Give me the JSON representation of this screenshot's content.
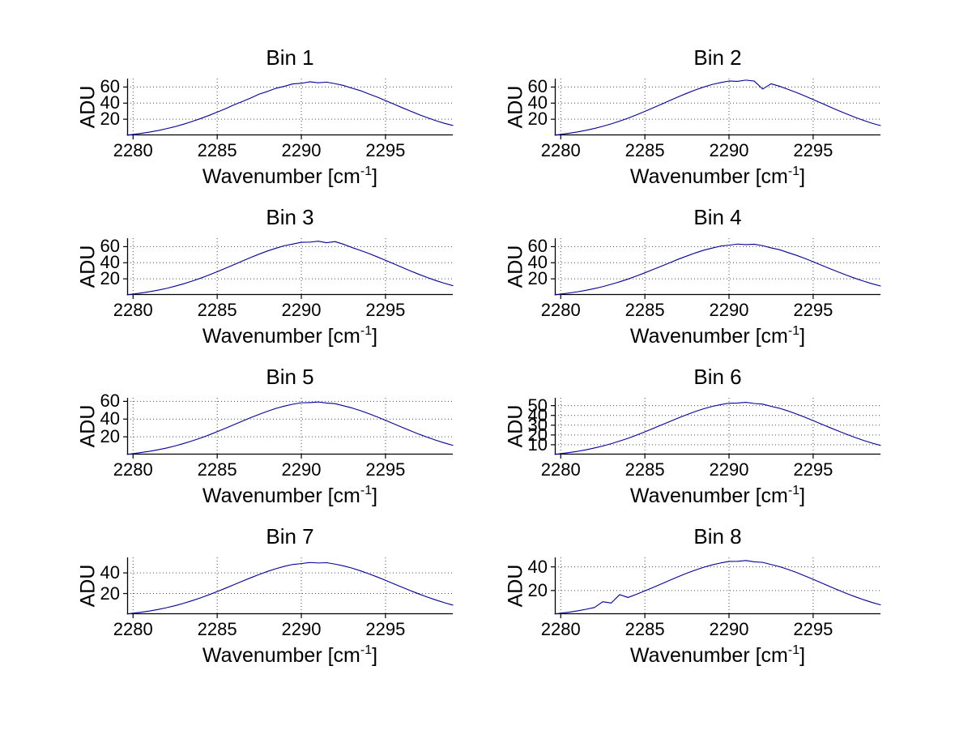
{
  "figure": {
    "background_color": "#ffffff",
    "line_color": "#000099",
    "grid_color": "#4d4d4d",
    "axis_color": "#000000",
    "text_color": "#000000"
  },
  "chart_data": {
    "type": "line",
    "layout": "4x2-subplots",
    "ylabel": "ADU",
    "xlabel": {
      "prefix": "Wavenumber [cm",
      "sup": "-1",
      "suffix": "]"
    },
    "grid": true,
    "xlim": [
      2279.65,
      2299
    ],
    "xticks": [
      2280,
      2285,
      2290,
      2295
    ],
    "x": [
      2279.65,
      2280,
      2280.5,
      2281,
      2281.5,
      2282,
      2282.5,
      2283,
      2283.5,
      2284,
      2284.5,
      2285,
      2285.5,
      2286,
      2286.5,
      2287,
      2287.5,
      2288,
      2288.5,
      2289,
      2289.5,
      2290,
      2290.5,
      2291,
      2291.5,
      2292,
      2292.5,
      2293,
      2293.5,
      2294,
      2294.5,
      2295,
      2295.5,
      2296,
      2296.5,
      2297,
      2297.5,
      2298,
      2298.5,
      2299
    ],
    "subplots": [
      {
        "title": "Bin 1",
        "ylim": [
          0,
          70.5
        ],
        "yticks": [
          20,
          40,
          60
        ],
        "values": [
          0.1,
          1.1,
          2.5,
          4.1,
          6.0,
          8.3,
          10.8,
          13.8,
          17.1,
          20.7,
          24.6,
          28.8,
          33.1,
          37.9,
          42.1,
          46.5,
          51.2,
          54.6,
          58.5,
          61.0,
          63.9,
          64.6,
          66.5,
          65.3,
          66.1,
          64.2,
          62.0,
          58.7,
          55.6,
          51.5,
          47.6,
          43.2,
          38.8,
          34.3,
          30.0,
          25.7,
          21.8,
          18.1,
          14.9,
          12.3
        ]
      },
      {
        "title": "Bin 2",
        "ylim": [
          0,
          70.5
        ],
        "yticks": [
          20,
          40,
          60
        ],
        "values": [
          0.1,
          1.2,
          2.6,
          4.2,
          6.2,
          8.5,
          11.2,
          14.2,
          17.6,
          21.3,
          25.4,
          29.7,
          34.2,
          38.8,
          43.4,
          48.0,
          52.3,
          56.4,
          60.0,
          63.2,
          65.5,
          67.5,
          67.0,
          68.6,
          67.4,
          57.5,
          64.0,
          61.0,
          57.2,
          53.3,
          49.0,
          44.5,
          39.9,
          35.3,
          30.7,
          26.4,
          22.3,
          18.5,
          15.0,
          12.1
        ]
      },
      {
        "title": "Bin 3",
        "ylim": [
          0,
          70.5
        ],
        "yticks": [
          20,
          40,
          60
        ],
        "values": [
          0.1,
          1.1,
          2.5,
          4.1,
          6.0,
          8.2,
          10.9,
          13.8,
          17.1,
          20.7,
          24.7,
          28.8,
          33.2,
          37.6,
          42.2,
          46.6,
          50.8,
          54.7,
          58.1,
          61.2,
          63.3,
          65.4,
          65.6,
          66.8,
          64.9,
          66.3,
          63.0,
          59.0,
          55.4,
          51.6,
          47.4,
          43.1,
          38.6,
          34.1,
          29.7,
          25.5,
          21.5,
          17.8,
          14.5,
          11.5
        ]
      },
      {
        "title": "Bin 4",
        "ylim": [
          0,
          70.5
        ],
        "yticks": [
          20,
          40,
          60
        ],
        "values": [
          0.1,
          1.1,
          2.4,
          3.9,
          5.7,
          7.9,
          10.3,
          13.2,
          16.3,
          19.7,
          23.5,
          27.5,
          31.7,
          35.9,
          40.2,
          44.5,
          48.4,
          52.2,
          55.6,
          58.2,
          60.7,
          61.8,
          63.2,
          62.5,
          63.0,
          61.2,
          58.5,
          56.2,
          52.7,
          49.3,
          45.4,
          41.2,
          36.9,
          32.6,
          28.4,
          24.4,
          20.6,
          17.1,
          13.9,
          11.1
        ]
      },
      {
        "title": "Bin 5",
        "ylim": [
          0,
          64
        ],
        "yticks": [
          20,
          40,
          60
        ],
        "values": [
          0.1,
          1.0,
          2.3,
          3.7,
          5.4,
          7.4,
          9.7,
          12.4,
          15.3,
          18.5,
          22.0,
          25.8,
          29.7,
          33.7,
          37.7,
          41.7,
          45.4,
          48.9,
          52.1,
          54.7,
          56.8,
          58.4,
          58.6,
          59.3,
          58.1,
          57.4,
          55.0,
          52.6,
          49.6,
          46.2,
          42.5,
          38.6,
          34.6,
          30.6,
          26.7,
          22.9,
          19.4,
          16.1,
          13.1,
          10.4
        ]
      },
      {
        "title": "Bin 6",
        "ylim": [
          0,
          58
        ],
        "yticks": [
          10,
          20,
          30,
          40,
          50
        ],
        "values": [
          0.1,
          0.9,
          2.0,
          3.3,
          4.8,
          6.7,
          8.7,
          11.1,
          13.8,
          16.6,
          19.8,
          23.2,
          26.7,
          30.3,
          33.9,
          37.5,
          40.8,
          44.0,
          46.8,
          49.2,
          51.0,
          52.5,
          52.7,
          53.4,
          52.2,
          51.5,
          49.3,
          47.3,
          44.6,
          41.5,
          38.2,
          34.7,
          31.1,
          27.5,
          24.0,
          20.6,
          17.4,
          14.4,
          11.7,
          9.3
        ]
      },
      {
        "title": "Bin 7",
        "ylim": [
          0,
          55
        ],
        "yticks": [
          20,
          40
        ],
        "values": [
          0.1,
          0.9,
          1.9,
          3.1,
          4.6,
          6.3,
          8.2,
          10.5,
          13.0,
          15.7,
          18.7,
          21.9,
          25.2,
          28.6,
          32.0,
          35.3,
          38.5,
          41.5,
          44.1,
          46.4,
          48.2,
          49.0,
          50.1,
          49.6,
          49.9,
          48.5,
          46.8,
          44.7,
          42.1,
          39.2,
          36.1,
          32.8,
          29.4,
          26.0,
          22.7,
          19.5,
          16.5,
          13.7,
          11.1,
          8.8
        ]
      },
      {
        "title": "Bin 8",
        "ylim": [
          0,
          48
        ],
        "yticks": [
          20,
          40
        ],
        "values": [
          0.1,
          0.8,
          1.7,
          2.8,
          4.1,
          5.6,
          10.5,
          9.4,
          16.5,
          14.1,
          16.8,
          19.7,
          22.6,
          25.7,
          28.8,
          31.8,
          34.7,
          37.3,
          39.7,
          41.7,
          43.3,
          44.6,
          44.7,
          45.4,
          44.3,
          43.8,
          42.0,
          40.2,
          37.9,
          35.3,
          32.4,
          29.5,
          26.4,
          23.3,
          20.3,
          17.4,
          14.7,
          12.2,
          9.9,
          7.9
        ]
      }
    ]
  }
}
